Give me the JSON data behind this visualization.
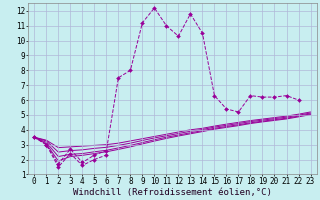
{
  "bg_color": "#c8eef0",
  "grid_color": "#b0b8d8",
  "line_color": "#990099",
  "xlabel": "Windchill (Refroidissement éolien,°C)",
  "xlim": [
    -0.5,
    23.5
  ],
  "ylim": [
    1,
    12.5
  ],
  "xticks": [
    0,
    1,
    2,
    3,
    4,
    5,
    6,
    7,
    8,
    9,
    10,
    11,
    12,
    13,
    14,
    15,
    16,
    17,
    18,
    19,
    20,
    21,
    22,
    23
  ],
  "yticks": [
    1,
    2,
    3,
    4,
    5,
    6,
    7,
    8,
    9,
    10,
    11,
    12
  ],
  "main_x": [
    0,
    1,
    2,
    3,
    4,
    5,
    6,
    7,
    8,
    9,
    10,
    11,
    12,
    13,
    14,
    15,
    16,
    17,
    18,
    19,
    20,
    21,
    22
  ],
  "main_y": [
    3.5,
    3.0,
    1.7,
    2.7,
    1.8,
    2.3,
    2.6,
    7.5,
    8.0,
    11.2,
    12.2,
    11.0,
    10.3,
    11.8,
    10.5,
    6.3,
    5.4,
    5.2,
    6.3,
    6.2,
    6.2,
    6.3,
    6.0
  ],
  "line2_x": [
    0,
    1,
    2,
    3,
    4,
    5,
    6
  ],
  "line2_y": [
    3.5,
    3.0,
    1.5,
    2.4,
    1.6,
    2.0,
    2.3
  ],
  "smooth_lines": [
    [
      3.5,
      3.3,
      2.8,
      2.85,
      2.9,
      2.95,
      3.0,
      3.1,
      3.25,
      3.4,
      3.55,
      3.7,
      3.85,
      4.0,
      4.1,
      4.25,
      4.38,
      4.5,
      4.62,
      4.72,
      4.82,
      4.92,
      5.05,
      5.2
    ],
    [
      3.5,
      3.25,
      2.5,
      2.6,
      2.65,
      2.75,
      2.82,
      2.95,
      3.1,
      3.28,
      3.45,
      3.6,
      3.75,
      3.9,
      4.02,
      4.18,
      4.3,
      4.42,
      4.55,
      4.65,
      4.75,
      4.85,
      4.98,
      5.13
    ],
    [
      3.5,
      3.15,
      2.2,
      2.35,
      2.4,
      2.52,
      2.62,
      2.78,
      2.95,
      3.14,
      3.33,
      3.5,
      3.65,
      3.8,
      3.94,
      4.1,
      4.22,
      4.34,
      4.47,
      4.58,
      4.68,
      4.78,
      4.92,
      5.07
    ],
    [
      3.5,
      3.05,
      1.9,
      2.2,
      2.28,
      2.4,
      2.52,
      2.68,
      2.85,
      3.05,
      3.24,
      3.42,
      3.58,
      3.73,
      3.88,
      4.04,
      4.16,
      4.28,
      4.42,
      4.53,
      4.63,
      4.73,
      4.87,
      5.02
    ]
  ],
  "tick_fontsize": 5.5,
  "xlabel_fontsize": 6.5
}
